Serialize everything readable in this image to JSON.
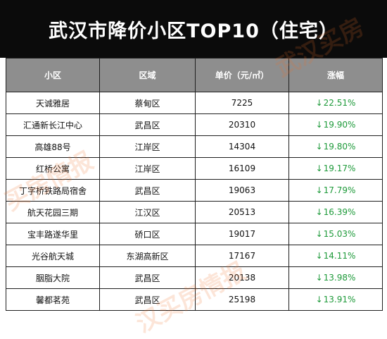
{
  "title": "武汉市降价小区TOP10（住宅）",
  "columns": [
    "小区",
    "区域",
    "单价（元/㎡）",
    "涨幅"
  ],
  "rows": [
    {
      "name": "天诚雅居",
      "district": "蔡甸区",
      "price": "7225",
      "change": "22.51%"
    },
    {
      "name": "汇通新长江中心",
      "district": "武昌区",
      "price": "20310",
      "change": "19.90%"
    },
    {
      "name": "高雄88号",
      "district": "江岸区",
      "price": "14304",
      "change": "19.80%"
    },
    {
      "name": "红桥公寓",
      "district": "江岸区",
      "price": "16109",
      "change": "19.17%"
    },
    {
      "name": "丁字桥铁路局宿舍",
      "district": "武昌区",
      "price": "19063",
      "change": "17.79%"
    },
    {
      "name": "航天花园三期",
      "district": "江汉区",
      "price": "20513",
      "change": "16.39%"
    },
    {
      "name": "宝丰路遂华里",
      "district": "硚口区",
      "price": "19017",
      "change": "15.03%"
    },
    {
      "name": "光谷航天城",
      "district": "东湖高新区",
      "price": "17167",
      "change": "14.11%"
    },
    {
      "name": "胭脂大院",
      "district": "武昌区",
      "price": "20138",
      "change": "13.98%"
    },
    {
      "name": "馨都茗苑",
      "district": "武昌区",
      "price": "25198",
      "change": "13.91%"
    }
  ],
  "change_arrow": "↓",
  "watermark": [
    "买房情报",
    "武汉买房",
    "汉买房情报"
  ],
  "colors": {
    "title_bg": "#0b0b0b",
    "header_bg": "#8e8e8e",
    "decrease": "#1e9a3a"
  }
}
